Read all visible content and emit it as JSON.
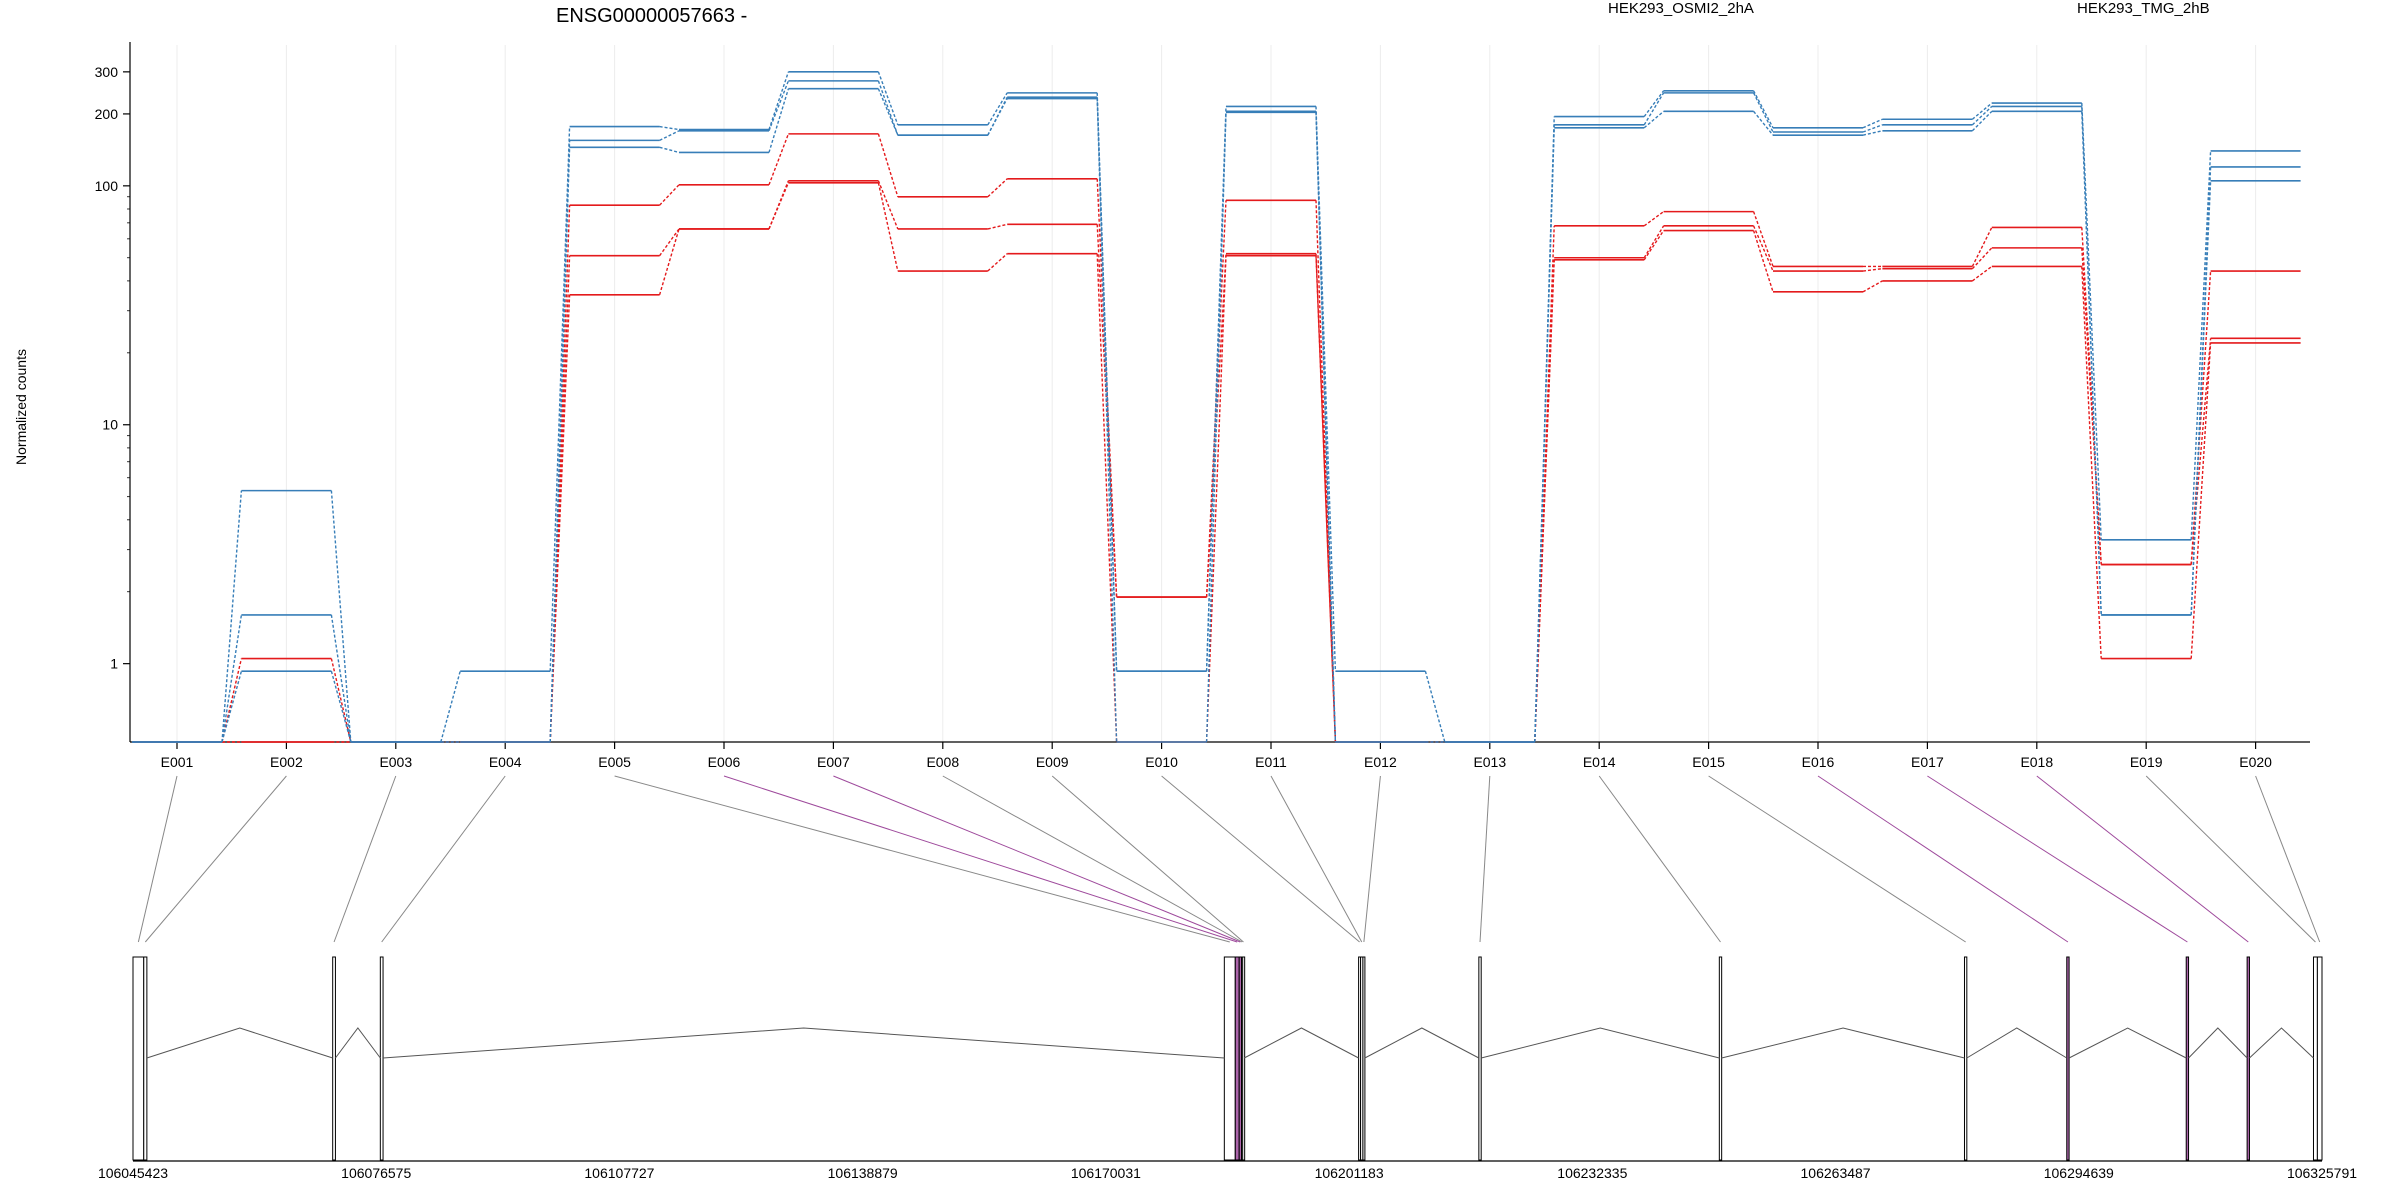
{
  "chart_data": {
    "type": "line",
    "title": "ENSG00000057663 -",
    "ylabel": "Normalized counts",
    "xlabel": "",
    "yscale": "log",
    "ylim": [
      0.47,
      400
    ],
    "yticks": [
      1,
      10,
      100,
      200,
      300
    ],
    "grid": "vertical",
    "legend": [
      {
        "name": "HEK293_OSMI2_2hA",
        "color": "#e41a1c"
      },
      {
        "name": "HEK293_TMG_2hB",
        "color": "#377eb8"
      }
    ],
    "categories": [
      "E001",
      "E002",
      "E003",
      "E004",
      "E005",
      "E006",
      "E007",
      "E008",
      "E009",
      "E010",
      "E011",
      "E012",
      "E013",
      "E014",
      "E015",
      "E016",
      "E017",
      "E018",
      "E019",
      "E020"
    ],
    "series": [
      {
        "group": "HEK293_OSMI2_2hA",
        "values": [
          0.47,
          1.05,
          0.47,
          0.47,
          83,
          101,
          165,
          90,
          107,
          1.9,
          87,
          0.47,
          0.47,
          68,
          78,
          46,
          46,
          67,
          2.6,
          44
        ]
      },
      {
        "group": "HEK293_OSMI2_2hA",
        "values": [
          0.47,
          0.47,
          0.47,
          0.47,
          51,
          66,
          105,
          66,
          69,
          1.9,
          52,
          0.47,
          0.47,
          50,
          68,
          44,
          45,
          55,
          2.6,
          23
        ]
      },
      {
        "group": "HEK293_OSMI2_2hA",
        "values": [
          0.47,
          0.47,
          0.47,
          0.47,
          35,
          66,
          103,
          44,
          52,
          0.47,
          51,
          0.47,
          0.47,
          49,
          65,
          36,
          40,
          46,
          1.05,
          22
        ]
      },
      {
        "group": "HEK293_TMG_2hB",
        "values": [
          0.47,
          5.3,
          0.47,
          0.93,
          177,
          172,
          300,
          180,
          245,
          0.93,
          215,
          0.93,
          0.47,
          195,
          250,
          175,
          190,
          222,
          3.3,
          140
        ]
      },
      {
        "group": "HEK293_TMG_2hB",
        "values": [
          0.47,
          1.6,
          0.47,
          0.47,
          155,
          170,
          275,
          163,
          235,
          0.93,
          205,
          0.47,
          0.47,
          180,
          245,
          168,
          180,
          215,
          1.6,
          120
        ]
      },
      {
        "group": "HEK293_TMG_2hB",
        "values": [
          0.47,
          0.93,
          0.47,
          0.47,
          145,
          138,
          255,
          163,
          232,
          0.47,
          203,
          0.47,
          0.47,
          175,
          205,
          163,
          170,
          205,
          1.6,
          105
        ]
      }
    ],
    "gene_model": {
      "coordinate_ticks": [
        "106045423",
        "106076575",
        "106107727",
        "106138879",
        "106170031",
        "106201183",
        "106232335",
        "106263487",
        "106294639",
        "106325791"
      ],
      "range": [
        106045423,
        106325791
      ],
      "highlight_color": "#9e4a9c",
      "highlighted_exons": [
        "E006",
        "E007",
        "E016",
        "E017",
        "E018"
      ],
      "exons": [
        {
          "id": "E001",
          "start": 106045423,
          "end": 106046800
        },
        {
          "id": "E002",
          "start": 106046800,
          "end": 106047200
        },
        {
          "id": "E003",
          "start": 106071000,
          "end": 106071350
        },
        {
          "id": "E004",
          "start": 106077100,
          "end": 106077450
        },
        {
          "id": "E005",
          "start": 106185200,
          "end": 106186600
        },
        {
          "id": "E006",
          "start": 106186600,
          "end": 106187100
        },
        {
          "id": "E007",
          "start": 106187100,
          "end": 106187400
        },
        {
          "id": "E008",
          "start": 106187400,
          "end": 106187550
        },
        {
          "id": "E009",
          "start": 106187550,
          "end": 106187750
        },
        {
          "id": "E010",
          "start": 106202400,
          "end": 106202650
        },
        {
          "id": "E011",
          "start": 106202650,
          "end": 106202950
        },
        {
          "id": "E012",
          "start": 106202950,
          "end": 106203200
        },
        {
          "id": "E013",
          "start": 106217800,
          "end": 106218100
        },
        {
          "id": "E014",
          "start": 106248600,
          "end": 106248900
        },
        {
          "id": "E015",
          "start": 106280000,
          "end": 106280300
        },
        {
          "id": "E016",
          "start": 106293100,
          "end": 106293400
        },
        {
          "id": "E017",
          "start": 106308400,
          "end": 106308700
        },
        {
          "id": "E018",
          "start": 106316200,
          "end": 106316500
        },
        {
          "id": "E019",
          "start": 106324700,
          "end": 106325200
        },
        {
          "id": "E020",
          "start": 106325200,
          "end": 106325791
        }
      ]
    }
  }
}
